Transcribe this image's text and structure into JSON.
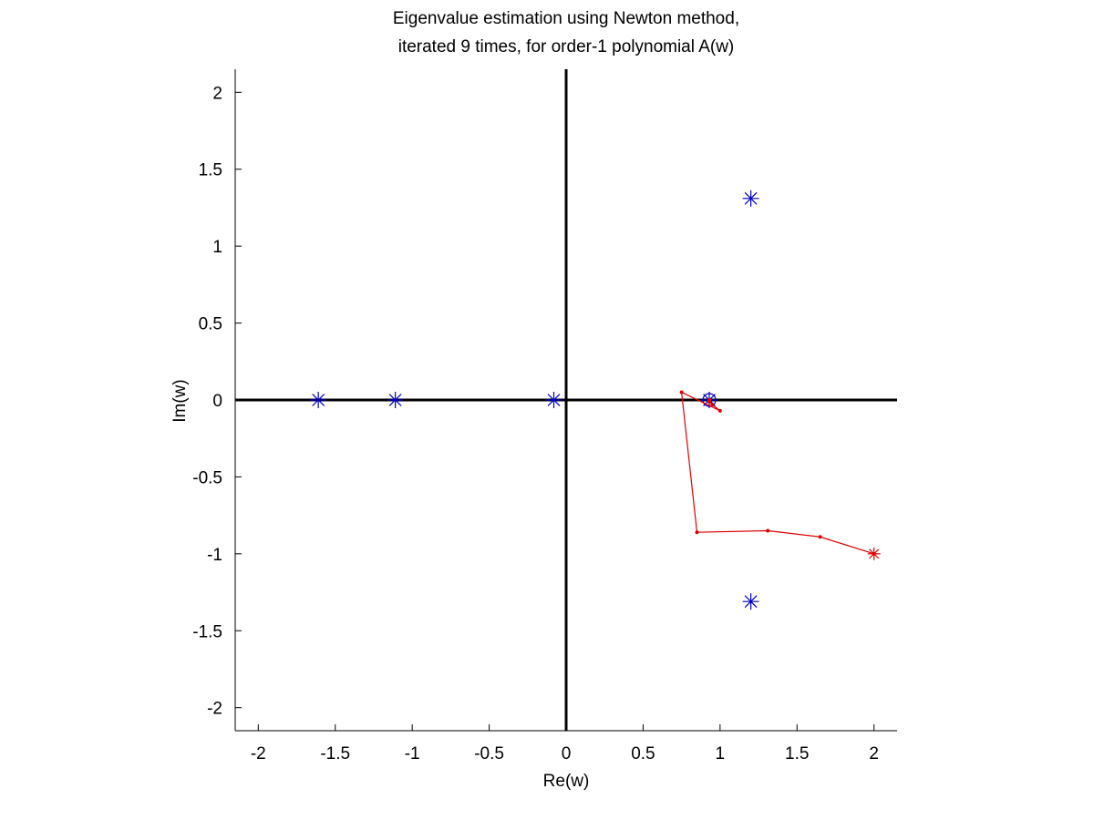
{
  "chart_data": {
    "type": "scatter",
    "title": [
      "Eigenvalue estimation using Newton method,",
      "iterated 9 times, for order-1 polynomial A(w)"
    ],
    "xlabel": "Re(w)",
    "ylabel": "Im(w)",
    "xlim": [
      -2.15,
      2.15
    ],
    "ylim": [
      -2.15,
      2.15
    ],
    "xticks": [
      -2,
      -1.5,
      -1,
      -0.5,
      0,
      0.5,
      1,
      1.5,
      2
    ],
    "xtick_labels": [
      "-2",
      "-1.5",
      "-1",
      "-0.5",
      "0",
      "0.5",
      "1",
      "1.5",
      "2"
    ],
    "yticks": [
      2,
      1.5,
      1,
      0.5,
      0,
      -0.5,
      -1,
      -1.5,
      -2
    ],
    "ytick_labels": [
      "2",
      "1.5",
      "1",
      "0.5",
      "0",
      "-0.5",
      "-1",
      "-1.5",
      "-2"
    ],
    "grid": false,
    "legend": "none",
    "zero_axes": true,
    "series": [
      {
        "marker": "star",
        "color": "#0000cc",
        "points": [
          {
            "x": -1.61,
            "y": 0.0
          },
          {
            "x": -1.11,
            "y": 0.0
          },
          {
            "x": -0.08,
            "y": 0.0
          },
          {
            "x": 0.93,
            "y": 0.0
          },
          {
            "x": 1.2,
            "y": 1.31
          },
          {
            "x": 1.2,
            "y": -1.31
          }
        ]
      },
      {
        "marker": "circle",
        "color": "#0000cc",
        "points": [
          {
            "x": 0.93,
            "y": 0.0
          }
        ]
      },
      {
        "marker": "line-dot",
        "color": "#dd0000",
        "start_marker": "star",
        "points": [
          {
            "x": 2.0,
            "y": -1.0
          },
          {
            "x": 1.65,
            "y": -0.89
          },
          {
            "x": 1.31,
            "y": -0.85
          },
          {
            "x": 0.85,
            "y": -0.86
          },
          {
            "x": 0.75,
            "y": 0.05
          },
          {
            "x": 1.0,
            "y": -0.07
          },
          {
            "x": 0.95,
            "y": -0.03
          },
          {
            "x": 0.93,
            "y": -0.01
          },
          {
            "x": 0.93,
            "y": 0.0
          },
          {
            "x": 0.93,
            "y": 0.0
          }
        ]
      }
    ]
  }
}
